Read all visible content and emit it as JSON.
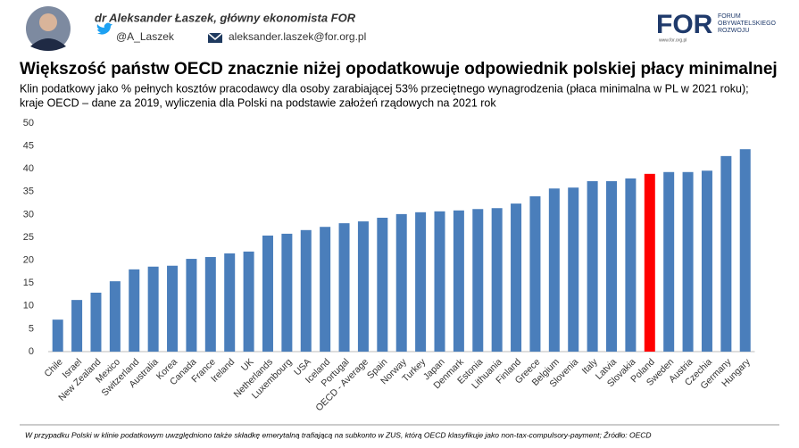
{
  "header": {
    "author": "dr Aleksander Łaszek, główny ekonomista FOR",
    "twitter": "@A_Laszek",
    "email": "aleksander.laszek@for.org.pl",
    "logo": {
      "mark": "FOR",
      "lines": [
        "FORUM",
        "OBYWATELSKIEGO",
        "ROZWOJU"
      ],
      "url": "www.for.org.pl"
    }
  },
  "chart_data": {
    "type": "bar",
    "title": "Większość państw OECD znacznie niżej opodatkowuje odpowiednik polskiej płacy minimalnej",
    "subtitle": [
      "Klin podatkowy jako % pełnych kosztów pracodawcy dla osoby zarabiającej 53% przeciętnego wynagrodzenia (płaca minimalna w PL w 2021 roku);",
      "kraje OECD – dane za 2019, wyliczenia dla Polski na podstawie założeń rządowych na 2021 rok"
    ],
    "categories": [
      "Chile",
      "Israel",
      "New Zealand",
      "Mexico",
      "Switzerland",
      "Australia",
      "Korea",
      "Canada",
      "France",
      "Ireland",
      "UK",
      "Netherlands",
      "Luxembourg",
      "USA",
      "Iceland",
      "Portugal",
      "OECD - Average",
      "Spain",
      "Norway",
      "Turkey",
      "Japan",
      "Denmark",
      "Estonia",
      "Lithuania",
      "Finland",
      "Greece",
      "Belgium",
      "Slovenia",
      "Italy",
      "Latvia",
      "Slovakia",
      "Poland",
      "Sweden",
      "Austria",
      "Czechia",
      "Germany",
      "Hungary"
    ],
    "values": [
      7.0,
      11.3,
      12.9,
      15.4,
      18.0,
      18.6,
      18.8,
      20.3,
      20.7,
      21.5,
      21.9,
      25.4,
      25.8,
      26.6,
      27.3,
      28.1,
      28.5,
      29.3,
      30.1,
      30.5,
      30.7,
      30.9,
      31.2,
      31.4,
      32.4,
      34.0,
      35.7,
      35.9,
      37.3,
      37.3,
      37.9,
      38.9,
      39.3,
      39.3,
      39.6,
      42.8,
      44.3
    ],
    "colors": [
      "#4a7ebb",
      "#4a7ebb",
      "#4a7ebb",
      "#4a7ebb",
      "#4a7ebb",
      "#4a7ebb",
      "#4a7ebb",
      "#4a7ebb",
      "#4a7ebb",
      "#4a7ebb",
      "#4a7ebb",
      "#4a7ebb",
      "#4a7ebb",
      "#4a7ebb",
      "#4a7ebb",
      "#4a7ebb",
      "#4a7ebb",
      "#4a7ebb",
      "#4a7ebb",
      "#4a7ebb",
      "#4a7ebb",
      "#4a7ebb",
      "#4a7ebb",
      "#4a7ebb",
      "#4a7ebb",
      "#4a7ebb",
      "#4a7ebb",
      "#4a7ebb",
      "#4a7ebb",
      "#4a7ebb",
      "#4a7ebb",
      "#ff0000",
      "#4a7ebb",
      "#4a7ebb",
      "#4a7ebb",
      "#4a7ebb",
      "#4a7ebb"
    ],
    "ylim": [
      0,
      50
    ],
    "yticks": [
      0,
      5,
      10,
      15,
      20,
      25,
      30,
      35,
      40,
      45,
      50
    ],
    "grid": false,
    "footnote": "W przypadku Polski w klinie podatkowym uwzględniono także składkę emerytalną trafiającą na subkonto w ZUS, którą OECD klasyfikuje jako non-tax-compulsory-payment; Źródło: OECD"
  }
}
